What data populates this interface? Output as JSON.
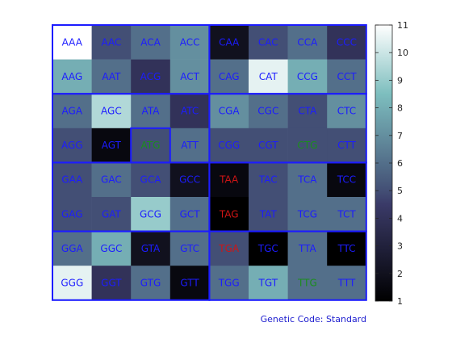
{
  "chart_data": {
    "type": "heatmap",
    "caption": "Genetic Code: Standard",
    "rows": [
      [
        "AAA",
        "AAC",
        "ACA",
        "ACC",
        "CAA",
        "CAC",
        "CCA",
        "CCC"
      ],
      [
        "AAG",
        "AAT",
        "ACG",
        "ACT",
        "CAG",
        "CAT",
        "CCG",
        "CCT"
      ],
      [
        "AGA",
        "AGC",
        "ATA",
        "ATC",
        "CGA",
        "CGC",
        "CTA",
        "CTC"
      ],
      [
        "AGG",
        "AGT",
        "ATG",
        "ATT",
        "CGG",
        "CGT",
        "CTG",
        "CTT"
      ],
      [
        "GAA",
        "GAC",
        "GCA",
        "GCC",
        "TAA",
        "TAC",
        "TCA",
        "TCC"
      ],
      [
        "GAG",
        "GAT",
        "GCG",
        "GCT",
        "TAG",
        "TAT",
        "TCG",
        "TCT"
      ],
      [
        "GGA",
        "GGC",
        "GTA",
        "GTC",
        "TGA",
        "TGC",
        "TTA",
        "TTC"
      ],
      [
        "GGG",
        "GGT",
        "GTG",
        "GTT",
        "TGG",
        "TGT",
        "TTG",
        "TTT"
      ]
    ],
    "values": [
      [
        11,
        5,
        6,
        7,
        2,
        5,
        6,
        4
      ],
      [
        8,
        6,
        4,
        7,
        6,
        10.5,
        8,
        6
      ],
      [
        6,
        9.5,
        6,
        4,
        7,
        6,
        5,
        7
      ],
      [
        5,
        1.5,
        5,
        6,
        5,
        5,
        5,
        5
      ],
      [
        5,
        6,
        5,
        2,
        1.5,
        5,
        6,
        1.5
      ],
      [
        5,
        5,
        9,
        6,
        1,
        5,
        6,
        6
      ],
      [
        6,
        8,
        2,
        6,
        5,
        1,
        6,
        1
      ],
      [
        10.5,
        4,
        6,
        1.5,
        6,
        8,
        6,
        6
      ]
    ],
    "text_colors": {
      "default": "#1c1cff",
      "start": "#1b8f1b",
      "stop": "#d01515"
    },
    "start_codons": [
      "ATG",
      "CTG",
      "TTG"
    ],
    "stop_codons": [
      "TAA",
      "TAG",
      "TGA"
    ],
    "colorbar": {
      "min": 1,
      "max": 11,
      "ticks": [
        1,
        2,
        3,
        4,
        5,
        6,
        7,
        8,
        9,
        10,
        11
      ],
      "colormap": "bone"
    },
    "border_color": "#1c1cff"
  }
}
